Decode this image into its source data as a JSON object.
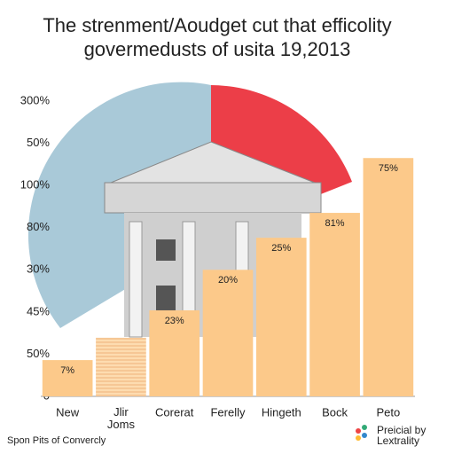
{
  "chart_data": {
    "type": "bar",
    "title": [
      "The strenment/Aoudget cut that efficolity",
      "govermedusts of usita 19,2013"
    ],
    "categories": [
      "New",
      "Jlir Joms",
      "Corerat",
      "Ferelly",
      "Hingeth",
      "Bock",
      "Peto"
    ],
    "values": [
      0.86,
      1.39,
      2.04,
      3.0,
      3.76,
      4.35,
      5.65
    ],
    "annotations": [
      "7%",
      null,
      "23%",
      "20%",
      "25%",
      "81%",
      "75%"
    ],
    "color": "#fcc98a",
    "ylim": [
      0,
      7
    ],
    "yticks": [
      0,
      {
        "value": 1,
        "label": "50%"
      },
      {
        "value": 2,
        "label": "45%"
      },
      {
        "value": 3,
        "label": "30%"
      },
      {
        "value": 4,
        "label": "80%"
      },
      {
        "value": 5,
        "label": "100%"
      },
      {
        "value": 6,
        "label": "50%"
      },
      {
        "value": 7,
        "label": "300%"
      }
    ],
    "footer_left": "Spon Pits of Convercly",
    "footer_right": [
      "Preicial by",
      "Lextrality"
    ]
  }
}
